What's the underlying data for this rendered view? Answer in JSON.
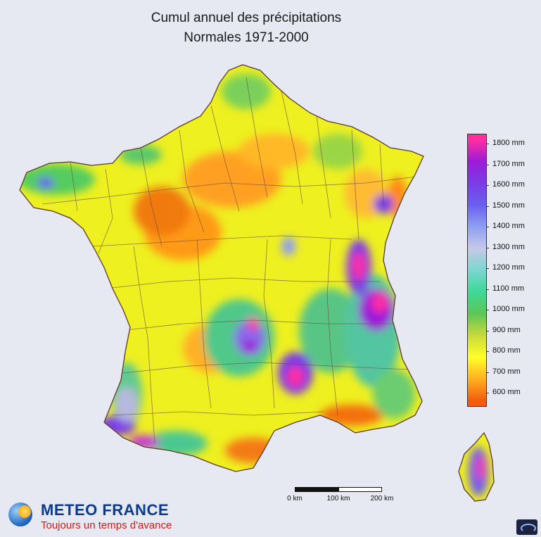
{
  "title": {
    "line1": "Cumul annuel des précipitations",
    "line2": "Normales 1971-2000"
  },
  "legend": {
    "labels": [
      "1800 mm",
      "1700 mm",
      "1600 mm",
      "1500 mm",
      "1400 mm",
      "1300 mm",
      "1200 mm",
      "1100 mm",
      "1000 mm",
      "900 mm",
      "800 mm",
      "700 mm",
      "600 mm"
    ],
    "colors": [
      "#ff2fa0",
      "#9b1bd8",
      "#7a3de6",
      "#6b5ff0",
      "#8f9ff2",
      "#c7c8e8",
      "#7bd6d0",
      "#3ed895",
      "#5cc657",
      "#c9d93a",
      "#ffff2b",
      "#ffb020",
      "#f45c0c"
    ]
  },
  "scale_bar": {
    "labels": [
      "0 km",
      "100 km",
      "200 km"
    ]
  },
  "branding": {
    "name": "METEO FRANCE",
    "tagline": "Toujours un temps d'avance"
  }
}
